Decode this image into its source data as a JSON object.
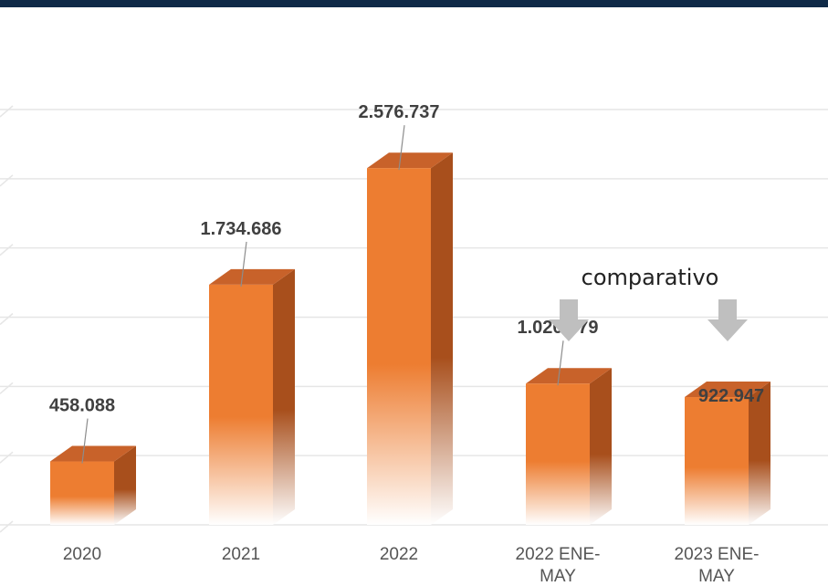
{
  "chart_data": {
    "type": "bar",
    "categories": [
      "2020",
      "2021",
      "2022",
      "2022 ENE-MAY",
      "2023 ENE-MAY"
    ],
    "category_lines": [
      [
        "2020"
      ],
      [
        "2021"
      ],
      [
        "2022"
      ],
      [
        "2022 ENE-",
        "MAY"
      ],
      [
        "2023 ENE-",
        "MAY"
      ]
    ],
    "values": [
      458088,
      1734686,
      2576737,
      1020379,
      922947
    ],
    "data_labels": [
      "458.088",
      "1.734.686",
      "2.576.737",
      "1.020.379",
      "922.947"
    ],
    "annotation": "comparativo",
    "annotated_categories": [
      "2022 ENE-MAY",
      "2023 ENE-MAY"
    ],
    "ylim": [
      0,
      3000000
    ],
    "grid": true,
    "style": "3d-column",
    "bar_color": "#ed7d31",
    "bar_side_color": "#a84f1c",
    "bar_top_color": "#c8622a",
    "arrow_color": "#bfbfbf",
    "header_color": "#0f2a48"
  }
}
